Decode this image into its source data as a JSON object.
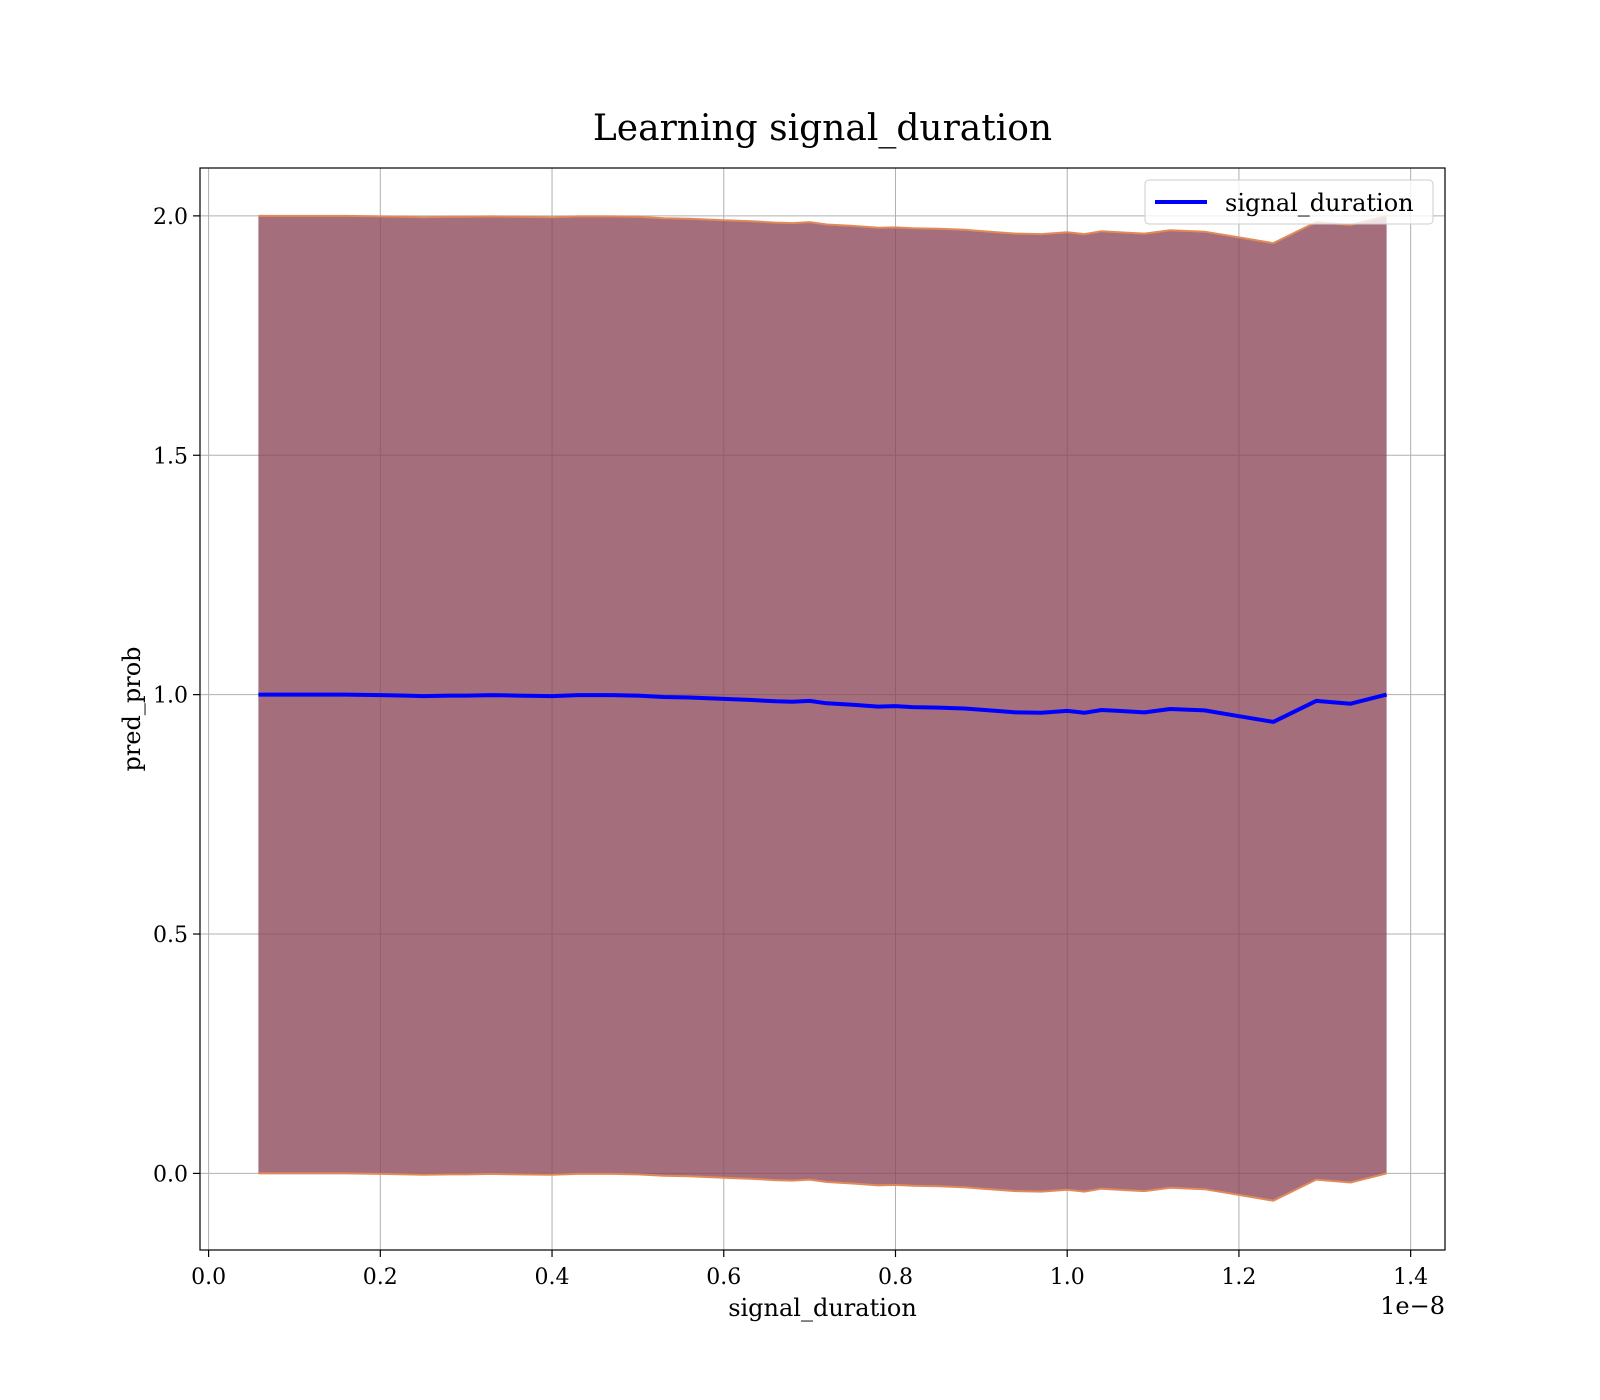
{
  "chart_data": {
    "type": "line",
    "title": "Learning signal_duration",
    "xlabel": "signal_duration",
    "ylabel": "pred_prob",
    "x_offset_label": "1e−8",
    "xlim": [
      -0.01,
      1.44
    ],
    "ylim": [
      -0.16,
      2.1
    ],
    "x_ticks": [
      "0.0",
      "0.2",
      "0.4",
      "0.6",
      "0.8",
      "1.0",
      "1.2",
      "1.4"
    ],
    "x_tick_values": [
      0.0,
      0.2,
      0.4,
      0.6,
      0.8,
      1.0,
      1.2,
      1.4
    ],
    "y_ticks": [
      "0.0",
      "0.5",
      "1.0",
      "1.5",
      "2.0"
    ],
    "y_tick_values": [
      0.0,
      0.5,
      1.0,
      1.5,
      2.0
    ],
    "grid": true,
    "legend_position": "top-right",
    "colors": {
      "line": "#0000ff",
      "band_fill": "#8b4558",
      "band_edge": "#e08a5a",
      "grid": "#b0b0b0"
    },
    "series": [
      {
        "name": "signal_duration",
        "x": [
          0.058,
          0.1,
          0.13,
          0.16,
          0.2,
          0.23,
          0.25,
          0.28,
          0.3,
          0.33,
          0.36,
          0.4,
          0.43,
          0.47,
          0.5,
          0.53,
          0.56,
          0.6,
          0.63,
          0.66,
          0.68,
          0.7,
          0.72,
          0.75,
          0.78,
          0.8,
          0.82,
          0.85,
          0.88,
          0.91,
          0.94,
          0.97,
          1.0,
          1.02,
          1.04,
          1.06,
          1.09,
          1.12,
          1.16,
          1.2,
          1.24,
          1.29,
          1.33,
          1.372
        ],
        "y": [
          1.0,
          1.0,
          1.0,
          1.0,
          0.999,
          0.998,
          0.997,
          0.998,
          0.998,
          0.999,
          0.998,
          0.997,
          0.999,
          0.999,
          0.998,
          0.995,
          0.994,
          0.991,
          0.989,
          0.986,
          0.985,
          0.987,
          0.982,
          0.979,
          0.975,
          0.976,
          0.974,
          0.973,
          0.971,
          0.967,
          0.963,
          0.962,
          0.966,
          0.962,
          0.968,
          0.966,
          0.963,
          0.97,
          0.967,
          0.955,
          0.943,
          0.987,
          0.981,
          1.0
        ],
        "upper": [
          2.0,
          2.0,
          2.0,
          2.0,
          1.999,
          1.998,
          1.997,
          1.998,
          1.998,
          1.999,
          1.998,
          1.997,
          1.999,
          1.999,
          1.998,
          1.995,
          1.994,
          1.991,
          1.989,
          1.986,
          1.985,
          1.987,
          1.982,
          1.979,
          1.975,
          1.976,
          1.974,
          1.973,
          1.971,
          1.967,
          1.963,
          1.962,
          1.966,
          1.962,
          1.968,
          1.966,
          1.963,
          1.97,
          1.967,
          1.955,
          1.943,
          1.987,
          1.981,
          2.0
        ],
        "lower": [
          0.0,
          0.0,
          0.0,
          0.0,
          -0.001,
          -0.002,
          -0.003,
          -0.002,
          -0.002,
          -0.001,
          -0.002,
          -0.003,
          -0.001,
          -0.001,
          -0.002,
          -0.005,
          -0.006,
          -0.009,
          -0.011,
          -0.014,
          -0.015,
          -0.013,
          -0.018,
          -0.021,
          -0.025,
          -0.024,
          -0.026,
          -0.027,
          -0.029,
          -0.033,
          -0.037,
          -0.038,
          -0.034,
          -0.038,
          -0.032,
          -0.034,
          -0.037,
          -0.03,
          -0.033,
          -0.045,
          -0.057,
          -0.013,
          -0.019,
          0.0
        ]
      }
    ]
  }
}
